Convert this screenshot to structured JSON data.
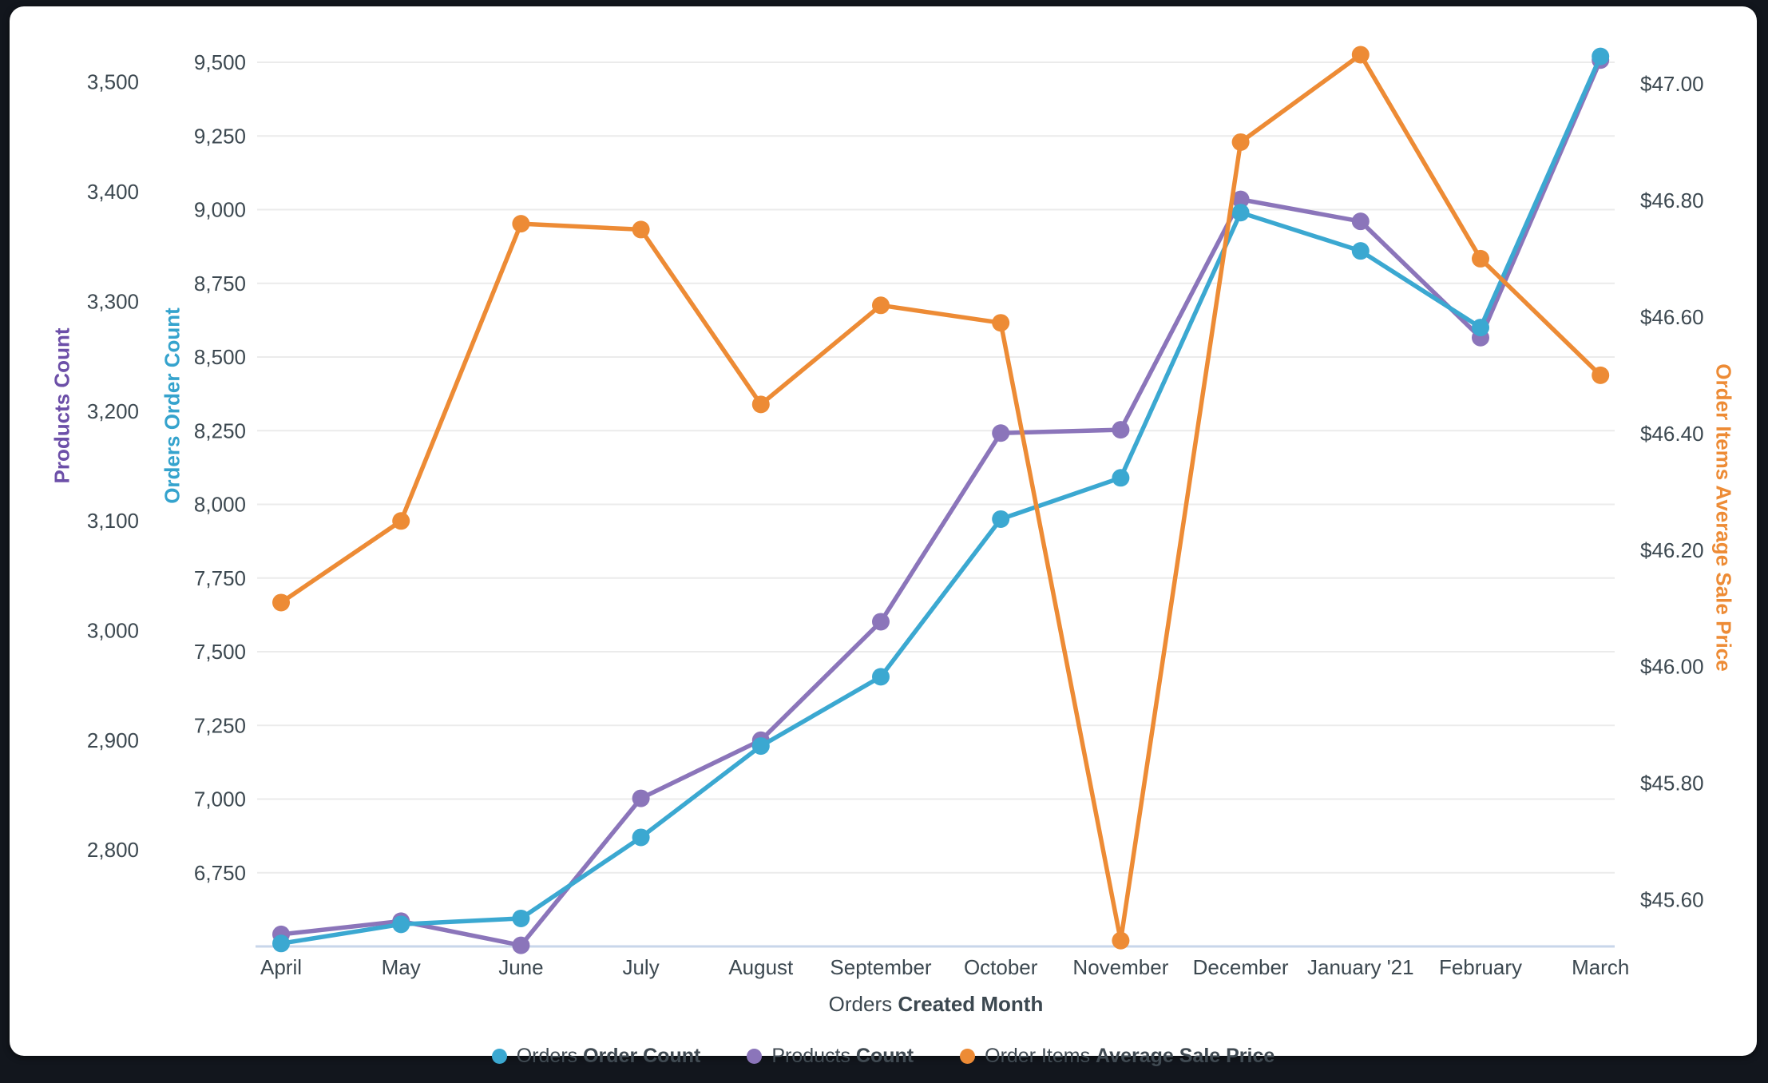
{
  "chart_data": {
    "type": "line",
    "title": "",
    "categories": [
      "April",
      "May",
      "June",
      "July",
      "August",
      "September",
      "October",
      "November",
      "December",
      "January '21",
      "February",
      "March"
    ],
    "x_axis": {
      "title_prefix": "Orders ",
      "title_bold": "Created Month"
    },
    "series": [
      {
        "id": "products",
        "label_prefix": "Products ",
        "label_bold": "Count",
        "color": "#8B75BA",
        "axis": "products",
        "values": [
          2723,
          2735,
          2713,
          2847,
          2900,
          3008,
          3180,
          3183,
          3393,
          3373,
          3267,
          3520
        ]
      },
      {
        "id": "orders",
        "label_prefix": "Orders ",
        "label_bold": "Order Count",
        "color": "#3BA8D1",
        "axis": "orders",
        "values": [
          6510,
          6575,
          6595,
          6870,
          7180,
          7415,
          7950,
          8090,
          8990,
          8860,
          8600,
          9520
        ]
      },
      {
        "id": "price",
        "label_prefix": "Order Items ",
        "label_bold": "Average Sale Price",
        "color": "#ED8B35",
        "axis": "price",
        "values": [
          46.11,
          46.25,
          46.76,
          46.75,
          46.45,
          46.62,
          46.59,
          45.53,
          46.9,
          47.05,
          46.7,
          46.5
        ]
      }
    ],
    "legend_order": [
      "orders",
      "products",
      "price"
    ],
    "legend_position": "bottom",
    "grid": true,
    "axes": {
      "products": {
        "title": "Products Count",
        "color": "#6C4FA8",
        "side": "left-outer",
        "min": 2712,
        "max": 3518,
        "ticks": [
          {
            "value": 3500,
            "label": "3,500"
          },
          {
            "value": 3400,
            "label": "3,400"
          },
          {
            "value": 3300,
            "label": "3,300"
          },
          {
            "value": 3200,
            "label": "3,200"
          },
          {
            "value": 3100,
            "label": "3,100"
          },
          {
            "value": 3000,
            "label": "3,000"
          },
          {
            "value": 2900,
            "label": "2,900"
          },
          {
            "value": 2800,
            "label": "2,800"
          }
        ]
      },
      "orders": {
        "title": "Orders Order Count",
        "color": "#35A3CD",
        "side": "left-inner",
        "min": 6500,
        "max": 9500,
        "gridlines": true,
        "ticks": [
          {
            "value": 9500,
            "label": "9,500"
          },
          {
            "value": 9250,
            "label": "9,250"
          },
          {
            "value": 9000,
            "label": "9,000"
          },
          {
            "value": 8750,
            "label": "8,750"
          },
          {
            "value": 8500,
            "label": "8,500"
          },
          {
            "value": 8250,
            "label": "8,250"
          },
          {
            "value": 8000,
            "label": "8,000"
          },
          {
            "value": 7750,
            "label": "7,750"
          },
          {
            "value": 7500,
            "label": "7,500"
          },
          {
            "value": 7250,
            "label": "7,250"
          },
          {
            "value": 7000,
            "label": "7,000"
          },
          {
            "value": 6750,
            "label": "6,750"
          }
        ]
      },
      "price": {
        "title": "Order Items Average Sale Price",
        "color": "#ED8B35",
        "side": "right",
        "min": 45.52,
        "max": 47.037,
        "ticks": [
          {
            "value": 47.0,
            "label": "$47.00"
          },
          {
            "value": 46.8,
            "label": "$46.80"
          },
          {
            "value": 46.6,
            "label": "$46.60"
          },
          {
            "value": 46.4,
            "label": "$46.40"
          },
          {
            "value": 46.2,
            "label": "$46.20"
          },
          {
            "value": 46.0,
            "label": "$46.00"
          },
          {
            "value": 45.8,
            "label": "$45.80"
          },
          {
            "value": 45.6,
            "label": "$45.60"
          }
        ]
      }
    },
    "colors": {
      "gridline": "#EBEBEB",
      "x_axis_line": "#C8D6EA",
      "tick_text": "#3C4850"
    }
  }
}
